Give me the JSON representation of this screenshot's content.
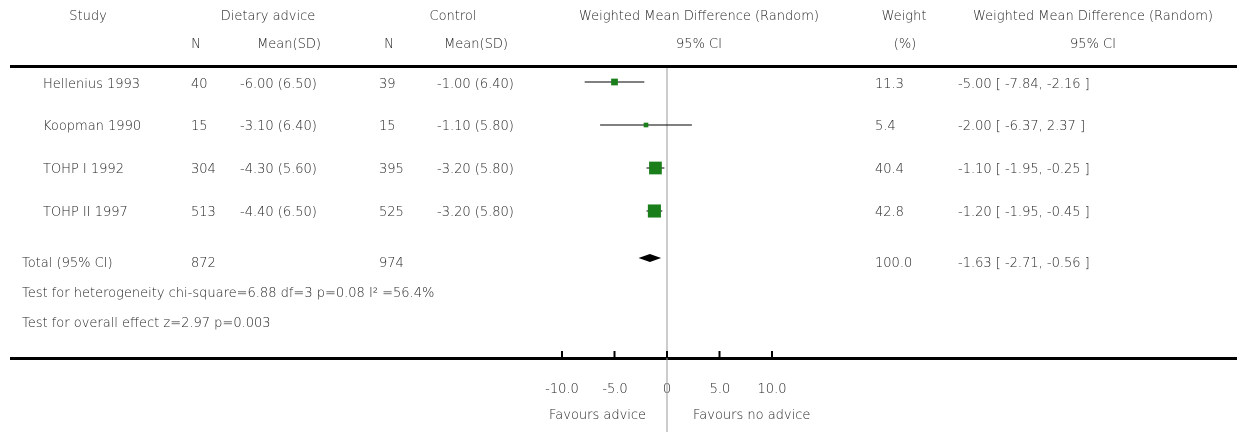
{
  "header": {
    "study": "Study",
    "dietary_advice": "Dietary advice",
    "control": "Control",
    "wmd_plot": "Weighted Mean Difference (Random)",
    "weight": "Weight",
    "wmd_text": "Weighted Mean Difference (Random)",
    "n1": "N",
    "mean1": "Mean(SD)",
    "n2": "N",
    "mean2": "Mean(SD)",
    "ci_plot": "95% CI",
    "weight_unit": "(%)",
    "ci_text": "95% CI"
  },
  "rows": [
    {
      "study": "Hellenius 1993",
      "n1": "40",
      "mean1": "-6.00 (6.50)",
      "n2": "39",
      "mean2": "-1.00 (6.40)",
      "weight": "11.3",
      "ci": "-5.00 [ -7.84, -2.16 ]"
    },
    {
      "study": "Koopman 1990",
      "n1": "15",
      "mean1": "-3.10 (6.40)",
      "n2": "15",
      "mean2": "-1.10 (5.80)",
      "weight": "5.4",
      "ci": "-2.00 [ -6.37, 2.37 ]"
    },
    {
      "study": "TOHP I 1992",
      "n1": "304",
      "mean1": "-4.30 (5.60)",
      "n2": "395",
      "mean2": "-3.20 (5.80)",
      "weight": "40.4",
      "ci": "-1.10 [ -1.95, -0.25 ]"
    },
    {
      "study": "TOHP II 1997",
      "n1": "513",
      "mean1": "-4.40 (6.50)",
      "n2": "525",
      "mean2": "-3.20 (5.80)",
      "weight": "42.8",
      "ci": "-1.20 [ -1.95, -0.45 ]"
    }
  ],
  "total": {
    "label": "Total (95% CI)",
    "n1": "872",
    "n2": "974",
    "weight": "100.0",
    "ci": "-1.63 [ -2.71, -0.56 ]"
  },
  "footer": {
    "heterogeneity": "Test for heterogeneity chi-square=6.88 df=3 p=0.08 I² =56.4%",
    "overall": "Test for overall effect z=2.97  p=0.003"
  },
  "axis": {
    "tick_labels": [
      "-10.0",
      "-5.0",
      "0",
      "5.0",
      "10.0"
    ],
    "favours_left": "Favours advice",
    "favours_right": "Favours no advice"
  },
  "chart_data": {
    "type": "forest",
    "xlim": [
      -10,
      10
    ],
    "ticks": [
      -10,
      -5,
      0,
      5,
      10
    ],
    "series": [
      {
        "name": "Hellenius 1993",
        "estimate": -5.0,
        "lower": -7.84,
        "upper": -2.16,
        "weight": 11.3
      },
      {
        "name": "Koopman 1990",
        "estimate": -2.0,
        "lower": -6.37,
        "upper": 2.37,
        "weight": 5.4
      },
      {
        "name": "TOHP I 1992",
        "estimate": -1.1,
        "lower": -1.95,
        "upper": -0.25,
        "weight": 40.4
      },
      {
        "name": "TOHP II 1997",
        "estimate": -1.2,
        "lower": -1.95,
        "upper": -0.45,
        "weight": 42.8
      }
    ],
    "pooled": {
      "estimate": -1.63,
      "lower": -2.71,
      "upper": -0.56
    },
    "marker_color": "#1a7f1a",
    "diamond_color": "#000000"
  }
}
